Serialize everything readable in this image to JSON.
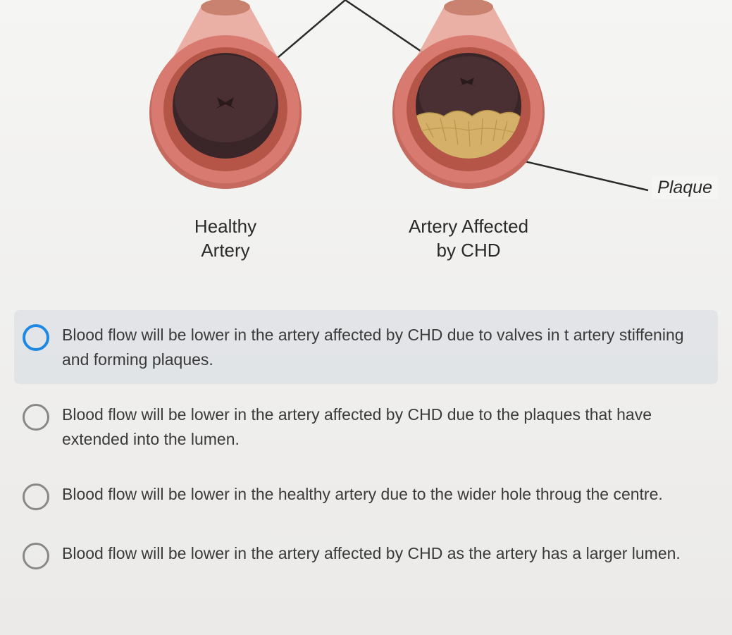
{
  "diagram": {
    "healthy": {
      "label": "Healthy\nArtery",
      "outer_wall_color": "#d87a6f",
      "outer_wall_shadow": "#c66a5f",
      "inner_wall_color": "#b55548",
      "lumen_dark": "#3a2628",
      "lumen_light": "#5a3638",
      "tube_color": "#e8a398"
    },
    "chd": {
      "label": "Artery Affected\nby CHD",
      "outer_wall_color": "#d87a6f",
      "outer_wall_shadow": "#c66a5f",
      "inner_wall_color": "#b55548",
      "lumen_dark": "#3a2628",
      "lumen_light": "#5a3638",
      "tube_color": "#e8a398",
      "plaque_color": "#d4b068",
      "plaque_outline": "#b89548"
    },
    "plaque_label": "Plaque",
    "annotation_line_color": "#2a2a2a"
  },
  "options": [
    {
      "text": "Blood flow will be lower in the artery affected by CHD due to valves in t artery stiffening and forming plaques.",
      "selected": true
    },
    {
      "text": "Blood flow will be lower in the artery affected by CHD due to the plaques that have extended into the lumen.",
      "selected": false
    },
    {
      "text": "Blood flow will be lower in the healthy artery due to the wider hole throug the centre.",
      "selected": false
    },
    {
      "text": "Blood flow will be lower in the artery affected by CHD as the artery has a larger lumen.",
      "selected": false
    }
  ]
}
